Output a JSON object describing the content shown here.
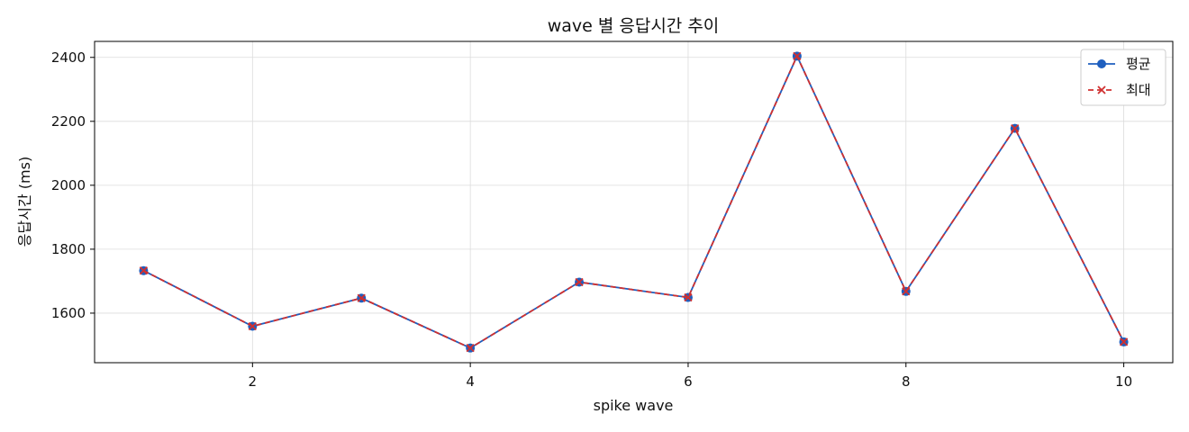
{
  "chart_data": {
    "type": "line",
    "title": "wave 별 응답시간 추이",
    "xlabel": "spike wave",
    "ylabel": "응답시간 (ms)",
    "x": [
      1,
      2,
      3,
      4,
      5,
      6,
      7,
      8,
      9,
      10
    ],
    "xlim": [
      0.55,
      10.45
    ],
    "ylim": [
      1445,
      2450
    ],
    "xticks": [
      2,
      4,
      6,
      8,
      10
    ],
    "yticks": [
      1600,
      1800,
      2000,
      2200,
      2400
    ],
    "grid": true,
    "legend_position": "top-right",
    "series": [
      {
        "name": "평균",
        "values": [
          1733,
          1559,
          1647,
          1491,
          1697,
          1649,
          2404,
          1668,
          2178,
          1510
        ],
        "color": "#1f5fbf",
        "marker": "circle",
        "linestyle": "solid"
      },
      {
        "name": "최대",
        "values": [
          1733,
          1559,
          1647,
          1491,
          1697,
          1649,
          2404,
          1668,
          2178,
          1510
        ],
        "color": "#d03030",
        "marker": "x",
        "linestyle": "dashed"
      }
    ]
  }
}
